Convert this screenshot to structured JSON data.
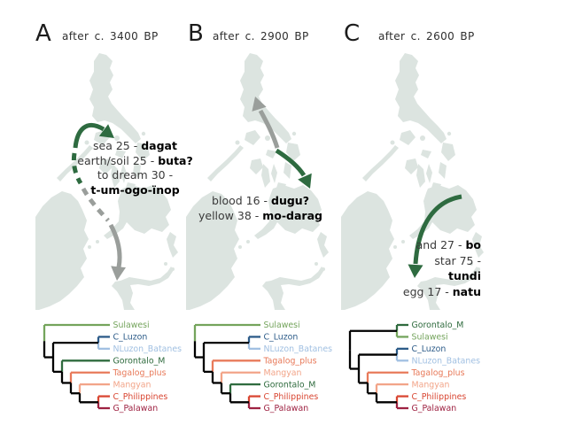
{
  "panels": [
    {
      "label": "A",
      "subtitle": "after c. 3400 BP",
      "word_lines": [
        {
          "plain": "sea 25 - ",
          "bold": "dagat"
        },
        {
          "plain": "earth/soil 25 - ",
          "bold": "buta?"
        },
        {
          "plain": "to dream 30 -",
          "bold": ""
        },
        {
          "plain": "",
          "bold": "t-um-ogo-ïnop"
        }
      ]
    },
    {
      "label": "B",
      "subtitle": "after c. 2900 BP",
      "word_lines": [
        {
          "plain": "blood 16 - ",
          "bold": "dugu?"
        },
        {
          "plain": "yellow 38 - ",
          "bold": "mo-darag"
        }
      ]
    },
    {
      "label": "C",
      "subtitle": "after c. 2600 BP",
      "word_lines": [
        {
          "plain": "and 27 - ",
          "bold": "bo"
        },
        {
          "plain": "star 75 -",
          "bold": ""
        },
        {
          "plain": "",
          "bold": "tundi"
        },
        {
          "plain": "egg 17 - ",
          "bold": "natu"
        }
      ]
    }
  ],
  "taxa_colors": {
    "Sulawesi": "#74a45c",
    "C_Luzon": "#2c5b88",
    "NLuzon_Batanes": "#a1c0e2",
    "Gorontalo_M": "#2f6b3e",
    "Tagalog_plus": "#e87a5a",
    "Mangyan": "#f2a488",
    "C_Philippines": "#d94733",
    "G_Palawan": "#9e2242"
  },
  "trees": [
    {
      "panel": "A",
      "tips_top_to_bottom": [
        "Sulawesi",
        "C_Luzon",
        "NLuzon_Batanes",
        "Gorontalo_M",
        "Tagalog_plus",
        "Mangyan",
        "C_Philippines",
        "G_Palawan"
      ],
      "topology": [
        "Sulawesi",
        [
          [
            "C_Luzon",
            "NLuzon_Batanes"
          ],
          [
            "Gorontalo_M",
            [
              "Tagalog_plus",
              [
                "Mangyan",
                [
                  "C_Philippines",
                  "G_Palawan"
                ]
              ]
            ]
          ]
        ]
      ]
    },
    {
      "panel": "B",
      "tips_top_to_bottom": [
        "Sulawesi",
        "C_Luzon",
        "NLuzon_Batanes",
        "Tagalog_plus",
        "Mangyan",
        "Gorontalo_M",
        "C_Philippines",
        "G_Palawan"
      ],
      "topology": [
        "Sulawesi",
        [
          [
            "C_Luzon",
            "NLuzon_Batanes"
          ],
          [
            "Tagalog_plus",
            [
              "Mangyan",
              [
                "Gorontalo_M",
                [
                  "C_Philippines",
                  "G_Palawan"
                ]
              ]
            ]
          ]
        ]
      ]
    },
    {
      "panel": "C",
      "tips_top_to_bottom": [
        "Gorontalo_M",
        "Sulawesi",
        "C_Luzon",
        "NLuzon_Batanes",
        "Tagalog_plus",
        "Mangyan",
        "C_Philippines",
        "G_Palawan"
      ],
      "topology": [
        [
          "Gorontalo_M",
          "Sulawesi"
        ],
        [
          [
            "C_Luzon",
            "NLuzon_Batanes"
          ],
          [
            "Tagalog_plus",
            [
              "Mangyan",
              [
                "C_Philippines",
                "G_Palawan"
              ]
            ]
          ]
        ]
      ]
    }
  ],
  "colors": {
    "map_fill": "#dce4e0",
    "arrow_green": "#2e6b40",
    "arrow_gray": "#9a9e9b",
    "text_plain": "#3a3a3a",
    "text_bold": "#000000",
    "tree_internal": "#000000"
  }
}
